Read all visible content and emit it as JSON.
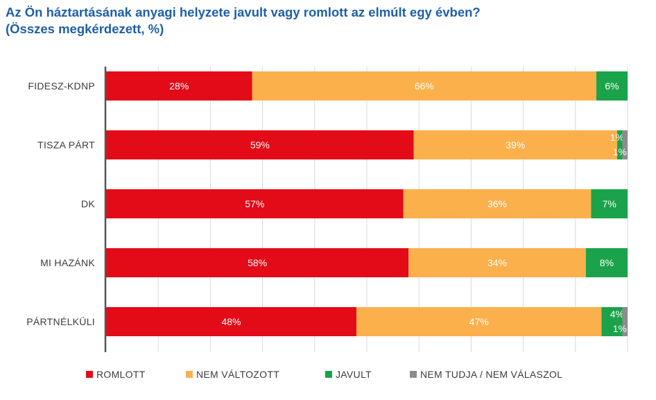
{
  "title_line1": "Az Ön háztartásának anyagi helyzete javult vagy romlott az elmúlt egy évben?",
  "title_line2": "(Összes megkérdezett, %)",
  "chart_data": {
    "type": "bar",
    "orientation": "horizontal",
    "stacked": true,
    "xlim": [
      0,
      100
    ],
    "grid": true,
    "legend_position": "bottom",
    "categories": [
      "FIDESZ-KDNP",
      "TISZA PÁRT",
      "DK",
      "MI HAZÁNK",
      "PÁRTNÉLKÜLI"
    ],
    "series": [
      {
        "name": "ROMLOTT",
        "color": "#e30b17",
        "values": [
          28,
          59,
          57,
          58,
          48
        ],
        "labels": [
          "28%",
          "59%",
          "57%",
          "58%",
          "48%"
        ]
      },
      {
        "name": "NEM VÁLTOZOTT",
        "color": "#fbb04c",
        "values": [
          66,
          39,
          36,
          34,
          47
        ],
        "labels": [
          "66%",
          "39%",
          "36%",
          "34%",
          "47%"
        ]
      },
      {
        "name": "JAVULT",
        "color": "#1aa34a",
        "values": [
          6,
          1,
          7,
          8,
          4
        ],
        "labels": [
          "6%",
          "1%",
          "7%",
          "8%",
          "4%"
        ]
      },
      {
        "name": "NEM TUDJA / NEM VÁLASZOL",
        "color": "#8c8c8c",
        "values": [
          0,
          1,
          0,
          0,
          1
        ],
        "labels": [
          "",
          "1%",
          "",
          "",
          "1%"
        ]
      }
    ]
  }
}
